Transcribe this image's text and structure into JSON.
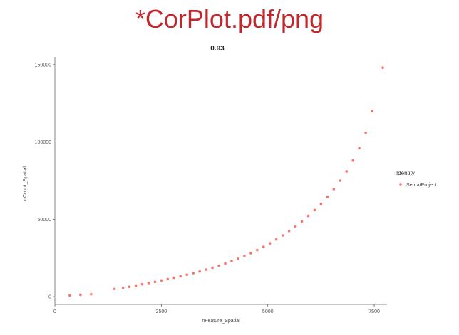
{
  "slide": {
    "title": "*CorPlot.pdf/png"
  },
  "chart_data": {
    "type": "scatter",
    "title": "0.93",
    "xlabel": "nFeature_Spatial",
    "ylabel": "nCount_Spatial",
    "xlim": [
      0,
      7800
    ],
    "ylim": [
      -5000,
      155000
    ],
    "x_ticks": [
      0,
      2500,
      5000,
      7500
    ],
    "x_tick_labels": [
      "0",
      "2500",
      "5000",
      "7500"
    ],
    "y_ticks": [
      0,
      50000,
      100000,
      150000
    ],
    "y_tick_labels": [
      "0",
      "50000",
      "100000",
      "150000"
    ],
    "grid": false,
    "legend": {
      "title": "Identity",
      "position": "right",
      "entries": [
        {
          "label": "SeuratProject",
          "color": "#f8766d"
        }
      ]
    },
    "point_color": "#f8766d",
    "series": [
      {
        "name": "SeuratProject",
        "x": [
          350,
          600,
          850,
          1400,
          1600,
          1750,
          1900,
          2050,
          2200,
          2350,
          2500,
          2650,
          2800,
          2950,
          3100,
          3250,
          3400,
          3550,
          3700,
          3850,
          4000,
          4150,
          4300,
          4450,
          4600,
          4750,
          4900,
          5050,
          5200,
          5350,
          5500,
          5650,
          5800,
          5950,
          6100,
          6250,
          6400,
          6550,
          6700,
          6850,
          7000,
          7150,
          7300,
          7450,
          7700
        ],
        "y": [
          800,
          1200,
          1600,
          5000,
          5800,
          6400,
          7200,
          8000,
          8800,
          9600,
          10500,
          11300,
          12200,
          13200,
          14200,
          15200,
          16300,
          17500,
          18700,
          20000,
          21500,
          23000,
          24600,
          26300,
          28100,
          30100,
          32200,
          34500,
          37000,
          39600,
          42400,
          45400,
          48700,
          52200,
          56000,
          60000,
          64500,
          69500,
          75000,
          81000,
          88000,
          96000,
          106000,
          120000,
          148000
        ]
      }
    ]
  }
}
